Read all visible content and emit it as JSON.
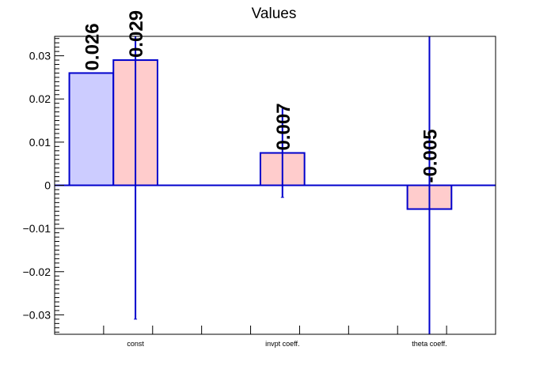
{
  "chart_data": {
    "type": "bar",
    "title": "Values",
    "xlabel": "",
    "ylabel": "",
    "categories": [
      "const",
      "invpt coeff.",
      "theta coeff."
    ],
    "ylim": [
      -0.0345,
      0.0345
    ],
    "yticks": [
      "0.03",
      "0.02",
      "0.01",
      "0",
      "−0.01",
      "−0.02",
      "−0.03"
    ],
    "ytick_values": [
      0.03,
      0.02,
      0.01,
      0,
      -0.01,
      -0.02,
      -0.03
    ],
    "series": [
      {
        "color": "#ccccff",
        "edge_color": "#0000cc",
        "values": [
          0.026,
          null,
          null
        ],
        "errors": [
          null,
          null,
          null
        ],
        "labels": [
          "0.026",
          "",
          ""
        ]
      },
      {
        "color": "#ffcccc",
        "edge_color": "#0000cc",
        "values": [
          0.029,
          0.0075,
          -0.0055
        ],
        "errors": [
          0.06,
          0.0103,
          0.06
        ],
        "labels": [
          "0.029",
          "0.007",
          "-0.005"
        ]
      }
    ],
    "grid": false,
    "legend": "none"
  }
}
